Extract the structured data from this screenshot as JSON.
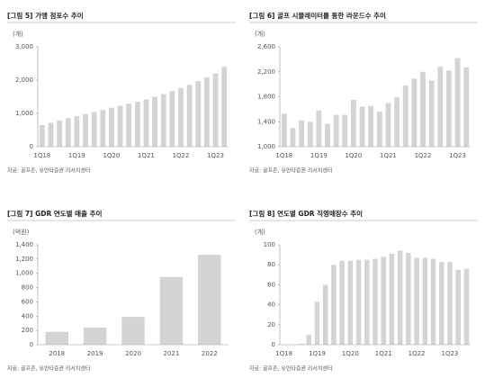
{
  "chart_data": [
    {
      "type": "bar",
      "title": "[그림 5] 가맹 점포수 추이",
      "unit": "(개)",
      "source": "자료: 골프존, 유안타증권 리서치센터",
      "categories": [
        "1Q18",
        null,
        null,
        null,
        "1Q19",
        null,
        null,
        null,
        "1Q20",
        null,
        null,
        null,
        "1Q21",
        null,
        null,
        null,
        "1Q22",
        null,
        null,
        null,
        "1Q23",
        null
      ],
      "values": [
        650,
        720,
        790,
        860,
        920,
        980,
        1040,
        1100,
        1170,
        1230,
        1290,
        1350,
        1420,
        1500,
        1580,
        1670,
        1760,
        1860,
        1970,
        2080,
        2200,
        2400
      ],
      "color": "#d4d4d4",
      "ylim": [
        0,
        3000
      ],
      "yticks": [
        0,
        {
          "value": 1000,
          "label": "1,000"
        },
        {
          "value": 2000,
          "label": "2,000"
        },
        {
          "value": 3000,
          "label": "3,000"
        }
      ]
    },
    {
      "type": "bar",
      "title": "[그림 6] 골프 시뮬레이터를 통한 라운드수 추이",
      "unit": "(개)",
      "source": "자료: 골프존, 유안타증권 리서치센터",
      "categories": [
        "1Q18",
        null,
        null,
        null,
        "1Q19",
        null,
        null,
        null,
        "1Q20",
        null,
        null,
        null,
        "1Q21",
        null,
        null,
        null,
        "1Q22",
        null,
        null,
        null,
        "1Q23",
        null
      ],
      "values": [
        1530,
        1300,
        1420,
        1400,
        1580,
        1370,
        1510,
        1510,
        1750,
        1640,
        1650,
        1560,
        1700,
        1790,
        1980,
        2090,
        2200,
        2060,
        2280,
        2220,
        2420,
        2270
      ],
      "color": "#d4d4d4",
      "ylim": [
        1000,
        2600
      ],
      "yticks": [
        {
          "value": 1000,
          "label": "1,000"
        },
        {
          "value": 1400,
          "label": "1,400"
        },
        {
          "value": 1800,
          "label": "1,800"
        },
        {
          "value": 2200,
          "label": "2,200"
        },
        {
          "value": 2600,
          "label": "2,600"
        }
      ]
    },
    {
      "type": "bar",
      "title": "[그림 7] GDR 연도별 매출 추이",
      "unit": "(억원)",
      "source": "자료: 골프존, 유안타증권 리서치센터",
      "categories": [
        "2018",
        "2019",
        "2020",
        "2021",
        "2022"
      ],
      "values": [
        180,
        240,
        390,
        950,
        1260
      ],
      "color": "#d4d4d4",
      "ylim": [
        0,
        1400
      ],
      "yticks": [
        0,
        200,
        400,
        600,
        800,
        {
          "value": 1000,
          "label": "1,000"
        },
        {
          "value": 1200,
          "label": "1,200"
        },
        {
          "value": 1400,
          "label": "1,400"
        }
      ]
    },
    {
      "type": "bar",
      "title": "[그림 8] 연도별 GDR 직영매장수 추이",
      "unit": "(개)",
      "source": "자료: 골프존, 유안타증권 리서치센터",
      "categories": [
        "1Q18",
        null,
        null,
        null,
        "1Q19",
        null,
        null,
        null,
        "1Q20",
        null,
        null,
        null,
        "1Q21",
        null,
        null,
        null,
        "1Q22",
        null,
        null,
        null,
        "1Q23",
        null,
        null
      ],
      "values": [
        0,
        0,
        1,
        10,
        43,
        60,
        80,
        84,
        84,
        85,
        85,
        86,
        88,
        91,
        94,
        92,
        87,
        87,
        86,
        83,
        83,
        75,
        76
      ],
      "color": "#d4d4d4",
      "ylim": [
        0,
        100
      ],
      "yticks": [
        0,
        20,
        40,
        60,
        80,
        100
      ]
    }
  ]
}
